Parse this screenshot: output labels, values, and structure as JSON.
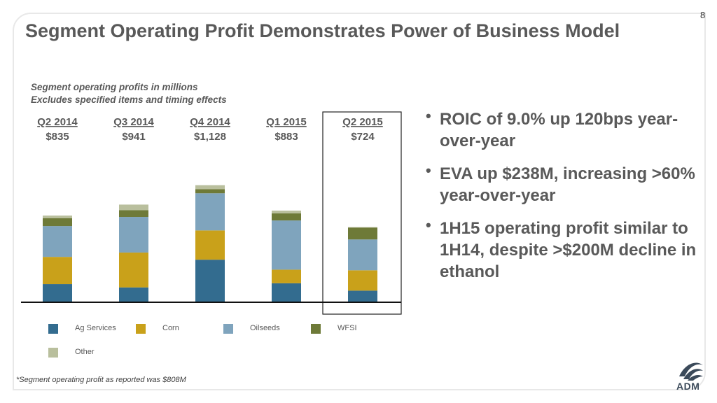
{
  "page_number": "8",
  "title": "Segment Operating Profit Demonstrates Power of Business Model",
  "subtitle_lines": [
    "Segment operating profits in millions",
    "Excludes specified items and timing effects"
  ],
  "bullets": [
    "ROIC of 9.0% up 120bps year-over-year",
    "EVA up $238M, increasing >60% year-over-year",
    "1H15 operating profit similar to 1H14, despite >$200M decline in ethanol"
  ],
  "footnote": "*Segment operating profit as reported was $808M",
  "logo_text": "ADM",
  "chart_data": {
    "type": "bar",
    "stacked": true,
    "categories": [
      "Q2 2014",
      "Q3 2014",
      "Q4 2014",
      "Q1 2015",
      "Q2 2015"
    ],
    "totals": [
      "$835",
      "$941",
      "$1,128",
      "$883",
      "$724"
    ],
    "highlight_category": "Q2 2015",
    "series": [
      {
        "name": "Ag Services",
        "color": "#336c8f",
        "values": [
          175,
          143,
          410,
          183,
          112
        ]
      },
      {
        "name": "Corn",
        "color": "#c9a11a",
        "values": [
          262,
          336,
          282,
          131,
          196
        ]
      },
      {
        "name": "Oilseeds",
        "color": "#7fa4bd",
        "values": [
          297,
          343,
          358,
          474,
          297
        ]
      },
      {
        "name": "WFSI",
        "color": "#6e7a38",
        "values": [
          75,
          66,
          39,
          68,
          115
        ]
      },
      {
        "name": "Other",
        "color": "#b9bf9d",
        "values": [
          26,
          53,
          39,
          27,
          4
        ]
      }
    ],
    "ylim": [
      0,
      1200
    ],
    "grid": false,
    "legend_position": "bottom"
  }
}
